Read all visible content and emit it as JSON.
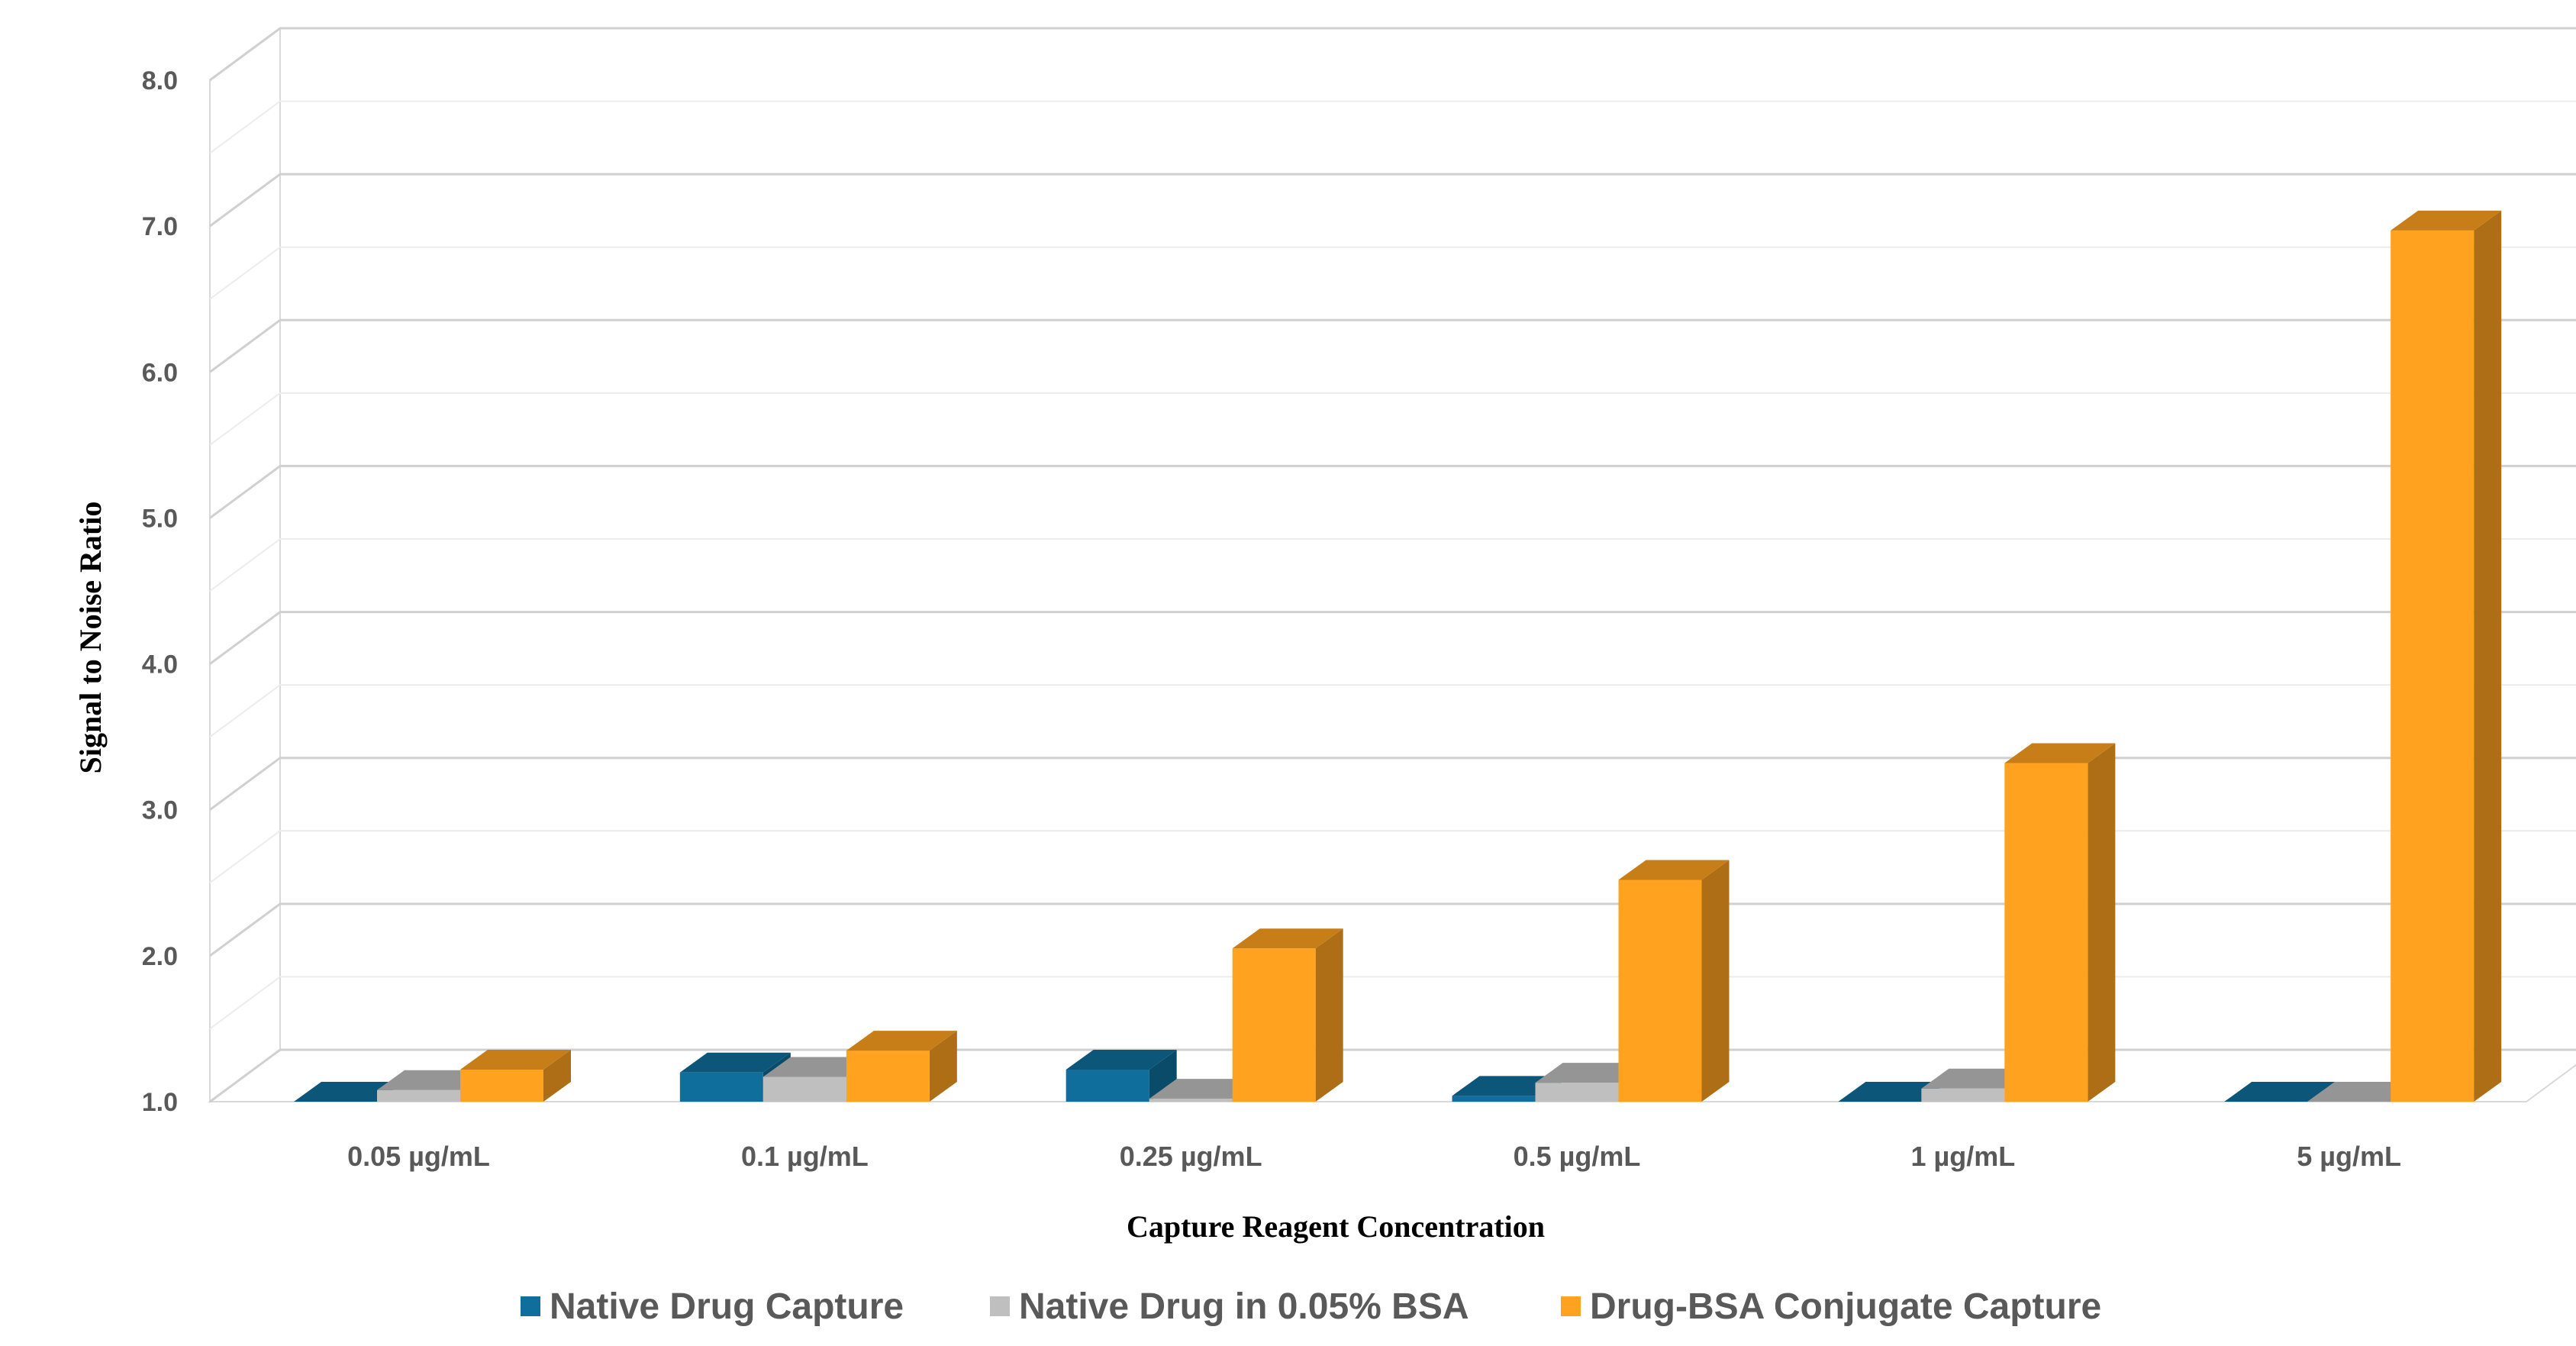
{
  "chart_data": {
    "type": "bar",
    "style": "3d-clustered-column",
    "title": "",
    "xlabel": "Capture Reagent Concentration",
    "ylabel": "Signal to Noise Ratio",
    "ylim": [
      1.0,
      8.0
    ],
    "yticks": [
      "1.0",
      "2.0",
      "3.0",
      "4.0",
      "5.0",
      "6.0",
      "7.0",
      "8.0"
    ],
    "grid": true,
    "legend_position": "bottom",
    "categories": [
      "0.05 µg/mL",
      "0.1 µg/mL",
      "0.25 µg/mL",
      "0.5 µg/mL",
      "1 µg/mL",
      "5 µg/mL"
    ],
    "series": [
      {
        "name": "Native Drug Capture",
        "color": "#0f6e9c",
        "values": [
          1.0,
          1.2,
          1.22,
          1.04,
          1.0,
          1.0
        ]
      },
      {
        "name": "Native Drug in 0.05% BSA",
        "color": "#bfbfbf",
        "values": [
          1.08,
          1.17,
          1.02,
          1.13,
          1.09,
          1.0
        ]
      },
      {
        "name": "Drug-BSA Conjugate Capture",
        "color": "#ffa21f",
        "values": [
          1.22,
          1.35,
          2.05,
          2.52,
          3.32,
          6.97
        ]
      }
    ]
  }
}
